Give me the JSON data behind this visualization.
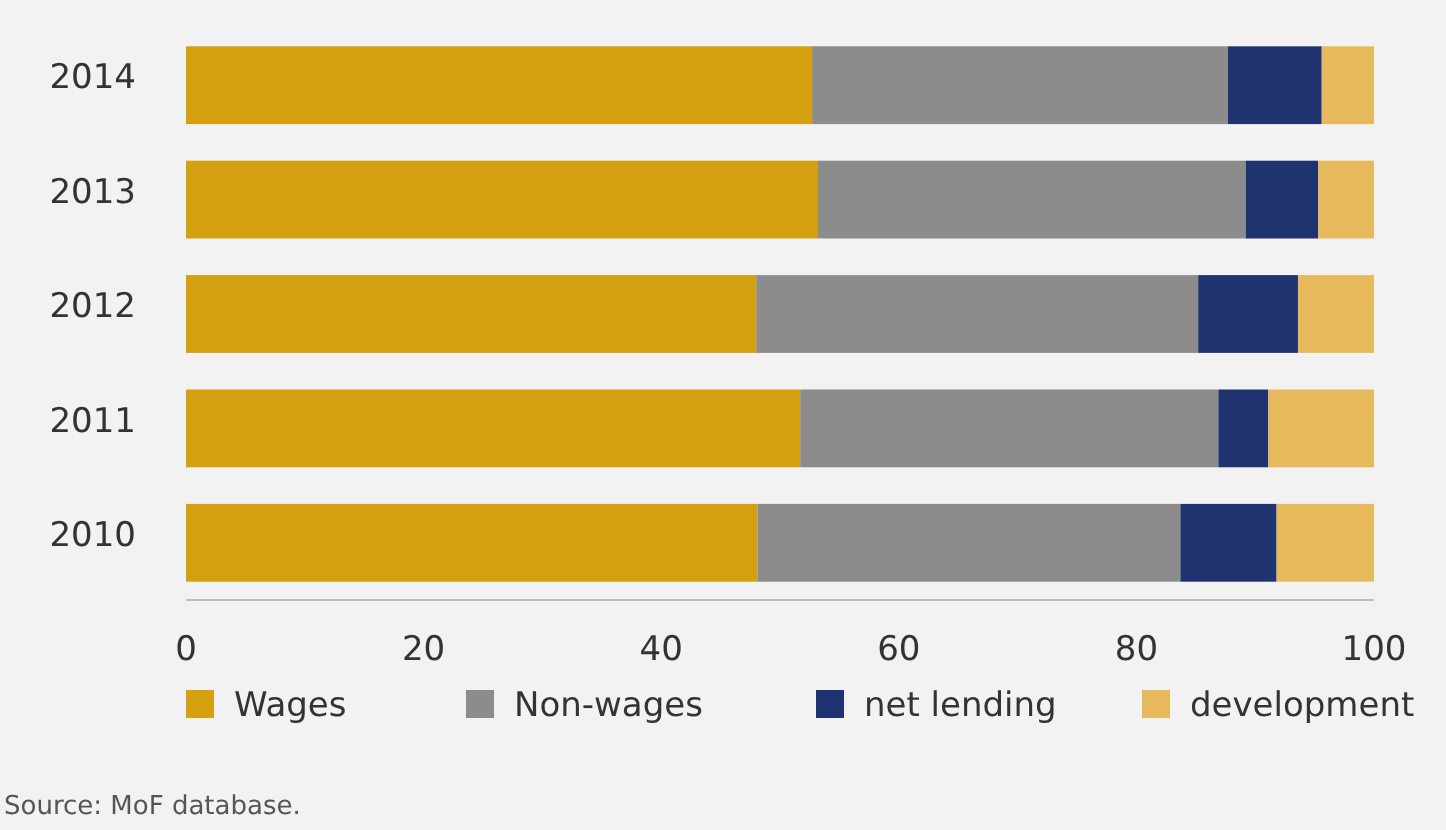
{
  "chart_data": {
    "type": "bar",
    "orientation": "horizontal",
    "stacked": true,
    "categories": [
      "2014",
      "2013",
      "2012",
      "2011",
      "2010"
    ],
    "series": [
      {
        "name": "Wages",
        "color": "#d4a010",
        "values": [
          52.7,
          53.2,
          48.0,
          51.7,
          48.1
        ]
      },
      {
        "name": "Non-wages",
        "color": "#8c8c8c",
        "values": [
          35.0,
          36.0,
          37.2,
          35.2,
          35.6
        ]
      },
      {
        "name": "net lending",
        "color": "#1f3370",
        "values": [
          7.9,
          6.1,
          8.4,
          4.2,
          8.1
        ]
      },
      {
        "name": "development",
        "color": "#e6b95c",
        "values": [
          4.4,
          4.7,
          6.4,
          8.9,
          8.2
        ]
      }
    ],
    "xlim": [
      0,
      100
    ],
    "xticks": [
      0,
      20,
      40,
      60,
      80,
      100
    ],
    "grid": false,
    "legend": "bottom",
    "annotations": [
      "Source: MoF database."
    ]
  }
}
